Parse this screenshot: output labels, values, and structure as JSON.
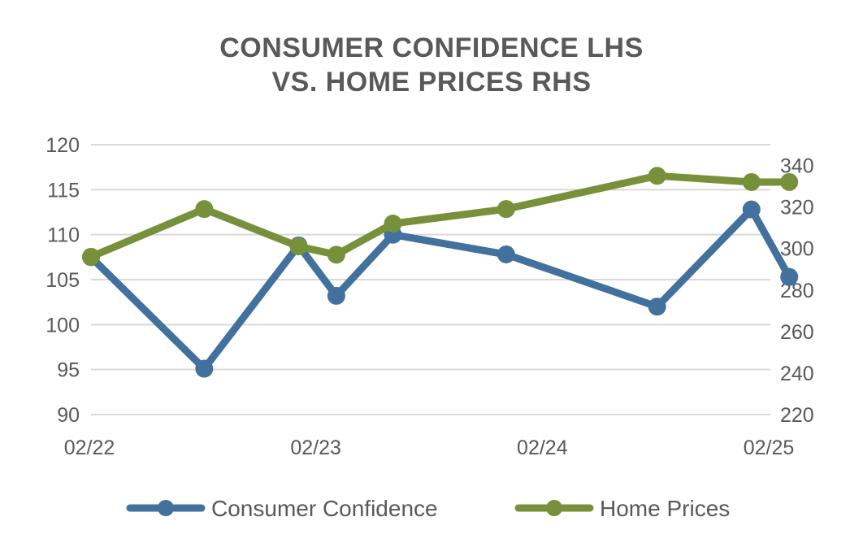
{
  "chart_data": {
    "type": "line",
    "title_lines": [
      "CONSUMER CONFIDENCE  LHS",
      "VS. HOME PRICES  RHS"
    ],
    "x_ticks": [
      "02/22",
      "02/23",
      "02/24",
      "02/25"
    ],
    "x_range": [
      "2022-02",
      "2025-02"
    ],
    "y_left": {
      "range": [
        90,
        120
      ],
      "ticks": [
        90,
        95,
        100,
        105,
        110,
        115,
        120
      ]
    },
    "y_right": {
      "range": [
        220,
        350
      ],
      "ticks": [
        220,
        240,
        260,
        280,
        300,
        320,
        340
      ]
    },
    "grid": "horizontal",
    "legend_position": "bottom",
    "series": [
      {
        "name": "Consumer Confidence",
        "axis": "left",
        "color": "#41719c",
        "points": [
          {
            "x": "2022-02",
            "y": 107.5
          },
          {
            "x": "2022-08",
            "y": 95.1
          },
          {
            "x": "2023-01",
            "y": 108.8
          },
          {
            "x": "2023-03",
            "y": 103.2
          },
          {
            "x": "2023-06",
            "y": 110.0
          },
          {
            "x": "2023-12",
            "y": 107.8
          },
          {
            "x": "2024-08",
            "y": 102.0
          },
          {
            "x": "2025-01",
            "y": 112.8
          },
          {
            "x": "2025-03",
            "y": 105.3
          }
        ]
      },
      {
        "name": "Home Prices",
        "axis": "right",
        "color": "#77913a",
        "points": [
          {
            "x": "2022-02",
            "y": 296
          },
          {
            "x": "2022-08",
            "y": 319
          },
          {
            "x": "2023-01",
            "y": 301
          },
          {
            "x": "2023-03",
            "y": 297
          },
          {
            "x": "2023-06",
            "y": 312
          },
          {
            "x": "2023-12",
            "y": 319
          },
          {
            "x": "2024-08",
            "y": 335
          },
          {
            "x": "2025-01",
            "y": 332
          },
          {
            "x": "2025-03",
            "y": 332
          }
        ]
      }
    ]
  }
}
